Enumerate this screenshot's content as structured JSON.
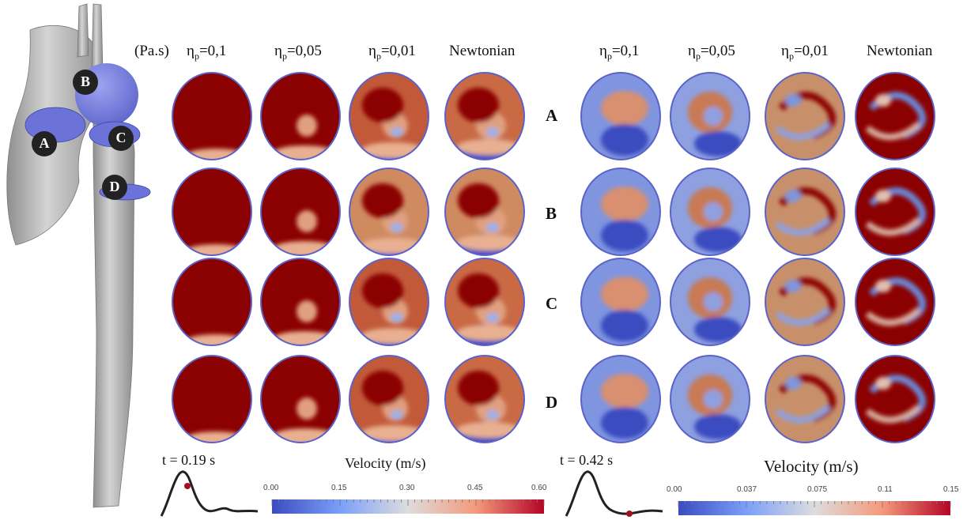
{
  "units": "(Pa.s)",
  "left_panel": {
    "headers": [
      {
        "sym": "η",
        "sub": "p",
        "val": "=0,1"
      },
      {
        "sym": "η",
        "sub": "p",
        "val": "=0,05"
      },
      {
        "sym": "η",
        "sub": "p",
        "val": "=0,01"
      },
      {
        "sym": "",
        "sub": "",
        "val": "Newtonian"
      }
    ],
    "time": "t = 0.19 s",
    "colorbar": {
      "title": "Velocity (m/s)",
      "ticks": [
        "0.00",
        "0.15",
        "0.30",
        "0.45",
        "0.60"
      ]
    }
  },
  "right_panel": {
    "headers": [
      {
        "sym": "η",
        "sub": "p",
        "val": "=0,1"
      },
      {
        "sym": "η",
        "sub": "p",
        "val": "=0,05"
      },
      {
        "sym": "η",
        "sub": "p",
        "val": "=0,01"
      },
      {
        "sym": "",
        "sub": "",
        "val": "Newtonian"
      }
    ],
    "time": "t = 0.42 s",
    "colorbar": {
      "title": "Velocity (m/s)",
      "ticks": [
        "0.00",
        "0.037",
        "0.075",
        "0.11",
        "0.15"
      ]
    }
  },
  "row_labels": [
    "A",
    "B",
    "C",
    "D"
  ],
  "aorta_markers": [
    "A",
    "B",
    "C",
    "D"
  ],
  "colors": {
    "low": "#3b4cc0",
    "mid": "#dddddd",
    "high": "#b40426",
    "max": "#8b0000",
    "vessel": "#b5b5b5",
    "plane": "#7077dd"
  }
}
